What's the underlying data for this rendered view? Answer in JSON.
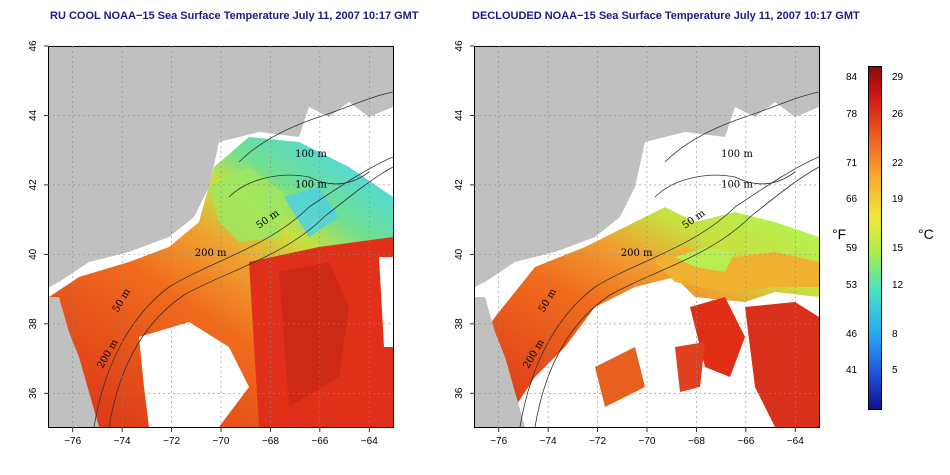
{
  "panels": [
    {
      "title": "RU COOL NOAA−15 Sea Surface Temperature July 11, 2007 10:17 GMT"
    },
    {
      "title": "DECLOUDED NOAA−15 Sea Surface Temperature July 11, 2007 10:17 GMT"
    }
  ],
  "axes": {
    "lon_ticks": [
      "−76",
      "−74",
      "−72",
      "−70",
      "−68",
      "−66",
      "−64"
    ],
    "lat_ticks": [
      "36",
      "38",
      "40",
      "42",
      "44",
      "46"
    ],
    "lon_range": [
      -77,
      -63
    ],
    "lat_range": [
      35,
      46
    ],
    "grid": "dotted"
  },
  "contours": {
    "labels": [
      "100 m",
      "100 m",
      "50 m",
      "200 m",
      "50 m",
      "200 m"
    ]
  },
  "colorbar": {
    "fahrenheit_ticks": [
      "84",
      "78",
      "71",
      "66",
      "59",
      "53",
      "46",
      "41"
    ],
    "celsius_ticks": [
      "29",
      "26",
      "22",
      "19",
      "15",
      "12",
      "8",
      "5"
    ],
    "fahrenheit_unit": "°F",
    "celsius_unit": "°C",
    "range_celsius": [
      2,
      30
    ]
  },
  "colors": {
    "land": "#c0c0c0",
    "cloud": "#ffffff",
    "title": "#1a1a8c"
  }
}
